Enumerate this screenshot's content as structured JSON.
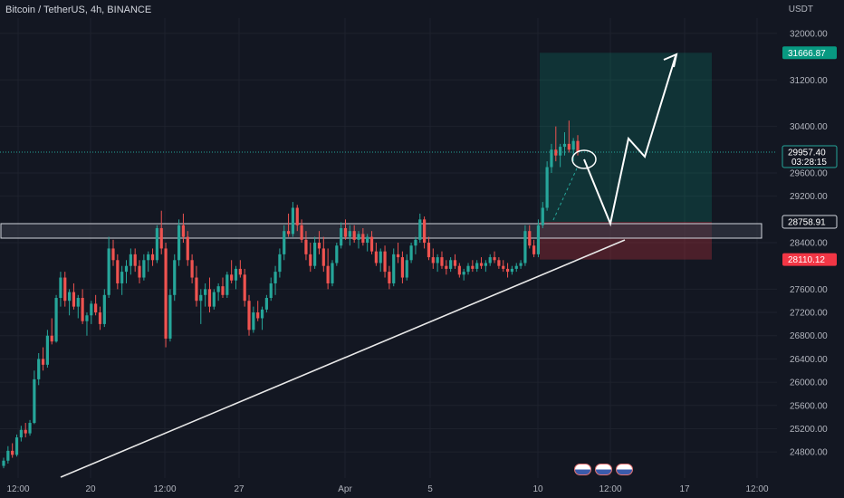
{
  "header": {
    "symbol": "Bitcoin / TetherUS, 4h, BINANCE",
    "currency": "USDT"
  },
  "colors": {
    "up": "#26a69a",
    "down": "#ef5350",
    "bg": "#131722",
    "grid": "#1e222d",
    "target": "#089981",
    "stop": "#f23645",
    "zone": "#3a3e4a",
    "line": "#e8e8e8"
  },
  "chart_data": {
    "type": "candlestick",
    "y_axis": {
      "min": 24500,
      "max": 32400,
      "ticks": [
        "32000.00",
        "31200.00",
        "30400.00",
        "29600.00",
        "29200.00",
        "28400.00",
        "27600.00",
        "27200.00",
        "26800.00",
        "26400.00",
        "26000.00",
        "25600.00",
        "25200.00",
        "24800.00"
      ]
    },
    "x_axis": {
      "ticks": [
        "12:00",
        "20",
        "12:00",
        "27",
        "Apr",
        "5",
        "10",
        "12:00",
        "17",
        "12:00"
      ]
    },
    "labels": {
      "target_price": "31666.87",
      "current_price": "29957.40",
      "countdown": "03:28:15",
      "entry_price": "28758.91",
      "stop_price": "28110.12"
    },
    "ohlc": [
      [
        24560,
        24700,
        24520,
        24650
      ],
      [
        24650,
        24900,
        24600,
        24820
      ],
      [
        24820,
        24950,
        24700,
        24750
      ],
      [
        24750,
        25100,
        24720,
        25050
      ],
      [
        25050,
        25250,
        24980,
        25180
      ],
      [
        25180,
        25300,
        25050,
        25120
      ],
      [
        25120,
        25350,
        25080,
        25300
      ],
      [
        25300,
        26200,
        25280,
        26050
      ],
      [
        26050,
        26500,
        25950,
        26400
      ],
      [
        26400,
        26600,
        26200,
        26300
      ],
      [
        26300,
        26900,
        26250,
        26800
      ],
      [
        26800,
        27100,
        26650,
        26700
      ],
      [
        26700,
        27500,
        26680,
        27450
      ],
      [
        27450,
        27900,
        27300,
        27800
      ],
      [
        27800,
        27900,
        27300,
        27400
      ],
      [
        27400,
        27600,
        27150,
        27550
      ],
      [
        27550,
        27700,
        27250,
        27300
      ],
      [
        27300,
        27500,
        27100,
        27450
      ],
      [
        27450,
        27600,
        27000,
        27050
      ],
      [
        27050,
        27200,
        26800,
        27150
      ],
      [
        27150,
        27400,
        27000,
        27350
      ],
      [
        27350,
        27500,
        27150,
        27200
      ],
      [
        27200,
        27300,
        26900,
        27000
      ],
      [
        27000,
        27600,
        26950,
        27500
      ],
      [
        27500,
        28500,
        27450,
        28300
      ],
      [
        28300,
        28450,
        28000,
        28100
      ],
      [
        28100,
        28200,
        27600,
        27700
      ],
      [
        27700,
        28000,
        27500,
        27900
      ],
      [
        27900,
        28100,
        27700,
        28000
      ],
      [
        28000,
        28300,
        27850,
        28200
      ],
      [
        28200,
        28300,
        27900,
        28000
      ],
      [
        28000,
        28100,
        27700,
        27800
      ],
      [
        27800,
        28200,
        27750,
        28100
      ],
      [
        28100,
        28250,
        27900,
        28200
      ],
      [
        28200,
        28300,
        28000,
        28100
      ],
      [
        28100,
        28700,
        28050,
        28650
      ],
      [
        28650,
        28950,
        28200,
        28300
      ],
      [
        28300,
        28400,
        26600,
        26750
      ],
      [
        26750,
        27600,
        26700,
        27500
      ],
      [
        27500,
        28200,
        27400,
        28100
      ],
      [
        28100,
        28800,
        28000,
        28700
      ],
      [
        28700,
        28900,
        28400,
        28500
      ],
      [
        28500,
        28600,
        28000,
        28100
      ],
      [
        28100,
        28200,
        27700,
        27800
      ],
      [
        27800,
        28000,
        27300,
        27400
      ],
      [
        27400,
        27600,
        27000,
        27500
      ],
      [
        27500,
        27700,
        27300,
        27600
      ],
      [
        27600,
        27800,
        27200,
        27300
      ],
      [
        27300,
        27600,
        27250,
        27550
      ],
      [
        27550,
        27700,
        27400,
        27650
      ],
      [
        27650,
        27800,
        27450,
        27500
      ],
      [
        27500,
        27900,
        27450,
        27850
      ],
      [
        27850,
        28100,
        27700,
        27750
      ],
      [
        27750,
        28000,
        27600,
        27950
      ],
      [
        27950,
        28100,
        27800,
        27850
      ],
      [
        27850,
        27950,
        27300,
        27400
      ],
      [
        27400,
        27500,
        26800,
        26900
      ],
      [
        26900,
        27300,
        26850,
        27200
      ],
      [
        27200,
        27400,
        27050,
        27100
      ],
      [
        27100,
        27300,
        26900,
        27250
      ],
      [
        27250,
        27500,
        27200,
        27450
      ],
      [
        27450,
        27800,
        27400,
        27700
      ],
      [
        27700,
        28000,
        27500,
        27900
      ],
      [
        27900,
        28300,
        27800,
        28200
      ],
      [
        28200,
        28700,
        28100,
        28600
      ],
      [
        28600,
        28900,
        28500,
        28550
      ],
      [
        28550,
        29100,
        28500,
        29000
      ],
      [
        29000,
        29050,
        28600,
        28700
      ],
      [
        28700,
        28800,
        28400,
        28450
      ],
      [
        28450,
        28600,
        28100,
        28200
      ],
      [
        28200,
        28400,
        27900,
        28000
      ],
      [
        28000,
        28500,
        27950,
        28400
      ],
      [
        28400,
        28600,
        28200,
        28300
      ],
      [
        28300,
        28500,
        27900,
        28000
      ],
      [
        28000,
        28300,
        27600,
        27700
      ],
      [
        27700,
        28100,
        27650,
        28050
      ],
      [
        28050,
        28400,
        28000,
        28350
      ],
      [
        28350,
        28750,
        28300,
        28650
      ],
      [
        28650,
        28800,
        28450,
        28500
      ],
      [
        28500,
        28700,
        28350,
        28600
      ],
      [
        28600,
        28700,
        28400,
        28450
      ],
      [
        28450,
        28600,
        28300,
        28550
      ],
      [
        28550,
        28650,
        28350,
        28400
      ],
      [
        28400,
        28550,
        28250,
        28500
      ],
      [
        28500,
        28600,
        28200,
        28250
      ],
      [
        28250,
        28400,
        28000,
        28050
      ],
      [
        28050,
        28300,
        27900,
        28250
      ],
      [
        28250,
        28350,
        27800,
        27900
      ],
      [
        27900,
        28000,
        27600,
        27700
      ],
      [
        27700,
        28300,
        27650,
        28200
      ],
      [
        28200,
        28400,
        28050,
        28150
      ],
      [
        28150,
        28250,
        27700,
        27800
      ],
      [
        27800,
        28200,
        27750,
        28100
      ],
      [
        28100,
        28400,
        28050,
        28350
      ],
      [
        28350,
        28500,
        28200,
        28450
      ],
      [
        28450,
        28900,
        28400,
        28800
      ],
      [
        28800,
        28850,
        28300,
        28400
      ],
      [
        28400,
        28500,
        28100,
        28150
      ],
      [
        28150,
        28300,
        27950,
        28050
      ],
      [
        28050,
        28200,
        27900,
        28150
      ],
      [
        28150,
        28250,
        27950,
        28000
      ],
      [
        28000,
        28100,
        27850,
        27950
      ],
      [
        27950,
        28150,
        27900,
        28100
      ],
      [
        28100,
        28200,
        27950,
        28000
      ],
      [
        28000,
        28050,
        27800,
        27850
      ],
      [
        27850,
        27950,
        27750,
        27900
      ],
      [
        27900,
        28050,
        27850,
        28000
      ],
      [
        28000,
        28100,
        27900,
        27950
      ],
      [
        27950,
        28100,
        27900,
        28050
      ],
      [
        28050,
        28150,
        27950,
        28000
      ],
      [
        28000,
        28100,
        27900,
        28050
      ],
      [
        28050,
        28200,
        28000,
        28150
      ],
      [
        28150,
        28250,
        28050,
        28100
      ],
      [
        28100,
        28150,
        27950,
        28000
      ],
      [
        28000,
        28100,
        27900,
        27950
      ],
      [
        27950,
        28050,
        27800,
        27900
      ],
      [
        27900,
        28000,
        27850,
        27950
      ],
      [
        27950,
        28050,
        27900,
        28000
      ],
      [
        28000,
        28100,
        27950,
        28050
      ],
      [
        28050,
        28700,
        28000,
        28600
      ],
      [
        28600,
        28700,
        28300,
        28350
      ],
      [
        28350,
        28450,
        28150,
        28200
      ],
      [
        28200,
        28800,
        28150,
        28700
      ],
      [
        28700,
        29100,
        28650,
        29000
      ],
      [
        29000,
        29800,
        28950,
        29700
      ],
      [
        29700,
        30100,
        29600,
        30000
      ],
      [
        30000,
        30400,
        29800,
        29900
      ],
      [
        29900,
        30100,
        29700,
        30050
      ],
      [
        30050,
        30300,
        29900,
        30100
      ],
      [
        30100,
        30500,
        29950,
        30000
      ],
      [
        30000,
        30200,
        29800,
        30150
      ],
      [
        30150,
        30250,
        29900,
        29957
      ]
    ]
  }
}
